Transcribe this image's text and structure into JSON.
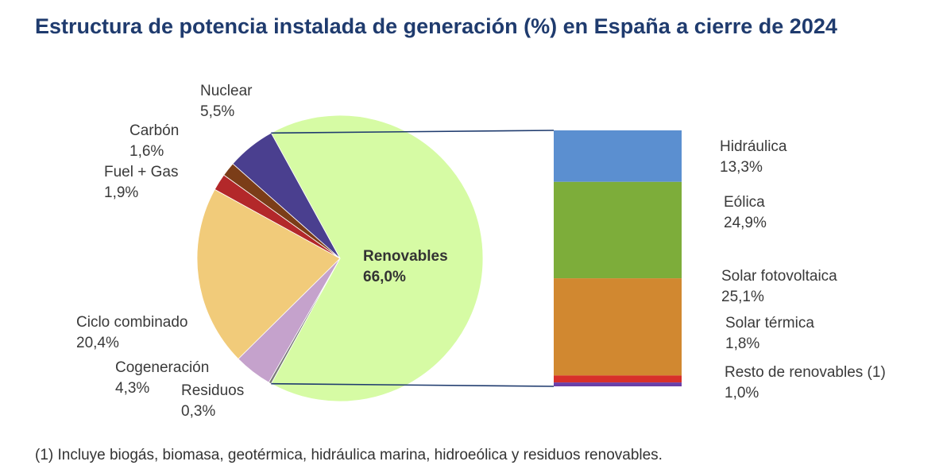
{
  "chart_data": {
    "type": "pie-of-bar",
    "title": "Estructura de potencia instalada de generación (%) en España a cierre de 2024",
    "footnote": "(1) Incluye biogás, biomasa, geotérmica, hidráulica marina, hidroeólica y residuos renovables.",
    "pie": {
      "slices": [
        {
          "id": "renovables",
          "label": "Renovables",
          "value_text": "66,0%",
          "value": 66.0,
          "color": "#d6fba4"
        },
        {
          "id": "residuos",
          "label": "Residuos",
          "value_text": "0,3%",
          "value": 0.3,
          "color": "#7a7a7a"
        },
        {
          "id": "cogeneracion",
          "label": "Cogeneración",
          "value_text": "4,3%",
          "value": 4.3,
          "color": "#c5a2cc"
        },
        {
          "id": "ciclo",
          "label": "Ciclo combinado",
          "value_text": "20,4%",
          "value": 20.4,
          "color": "#f1cb7a"
        },
        {
          "id": "fuelgas",
          "label": "Fuel + Gas",
          "value_text": "1,9%",
          "value": 1.9,
          "color": "#b3282a"
        },
        {
          "id": "carbon",
          "label": "Carbón",
          "value_text": "1,6%",
          "value": 1.6,
          "color": "#7b3d18"
        },
        {
          "id": "nuclear",
          "label": "Nuclear",
          "value_text": "5,5%",
          "value": 5.5,
          "color": "#4a3f8f"
        }
      ]
    },
    "bar": {
      "segments": [
        {
          "id": "hidraulica",
          "label": "Hidráulica",
          "value_text": "13,3%",
          "value": 13.3,
          "color": "#5b8fd0"
        },
        {
          "id": "eolica",
          "label": "Eólica",
          "value_text": "24,9%",
          "value": 24.9,
          "color": "#7dad3a"
        },
        {
          "id": "fotovoltaica",
          "label": "Solar fotovoltaica",
          "value_text": "25,1%",
          "value": 25.1,
          "color": "#d18830"
        },
        {
          "id": "termica",
          "label": "Solar térmica",
          "value_text": "1,8%",
          "value": 1.8,
          "color": "#d8302a"
        },
        {
          "id": "resto",
          "label": "Resto de renovables (1)",
          "value_text": "1,0%",
          "value": 1.0,
          "color": "#6a3fa8"
        }
      ]
    }
  }
}
